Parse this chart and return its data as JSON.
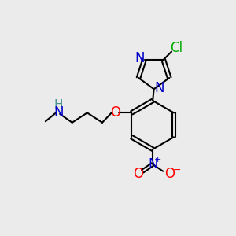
{
  "bg_color": "#ebebeb",
  "bond_color": "#000000",
  "bond_width": 1.5,
  "atom_colors": {
    "N": "#0000cc",
    "O": "#ff0000",
    "Cl": "#00aa00",
    "C": "#000000",
    "H": "#4a9090"
  },
  "font_size": 12,
  "font_size_small": 10,
  "font_size_charge": 8
}
